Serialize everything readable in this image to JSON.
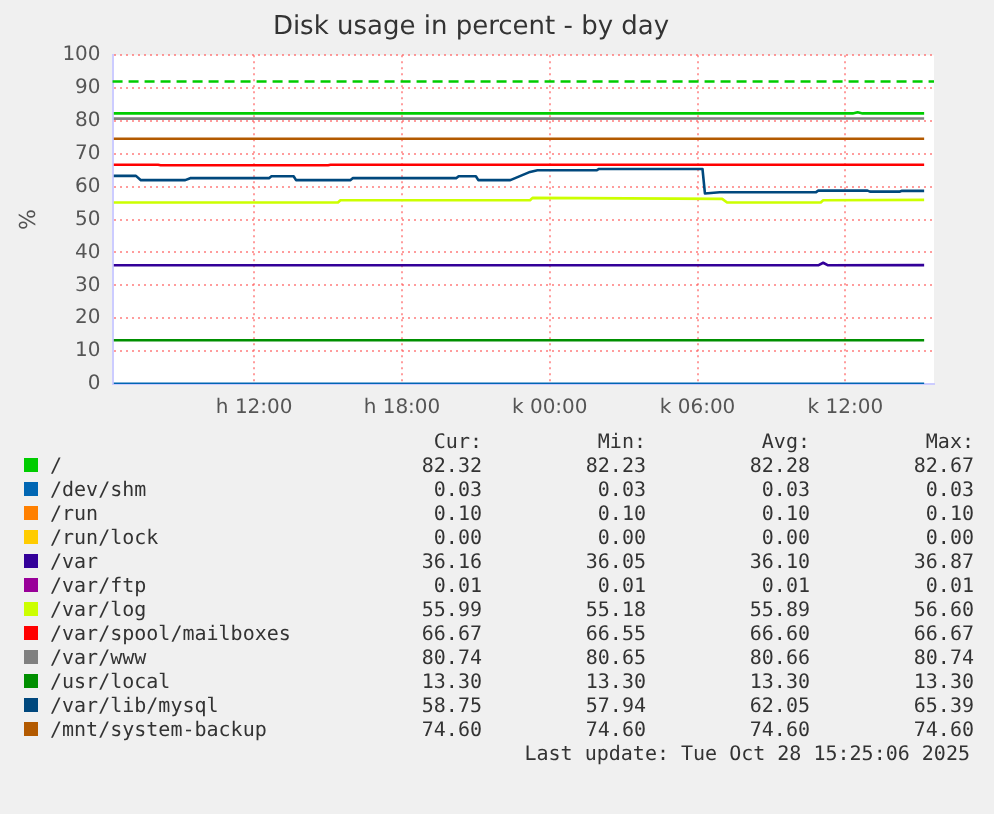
{
  "chart_data": {
    "type": "line",
    "title": "Disk usage in percent - by day",
    "ylabel": "%",
    "x": [
      "2025-10-27T06:18",
      "2025-10-28T15:12"
    ],
    "xlim": [
      "2025-10-27T06:15",
      "2025-10-28T15:36"
    ],
    "xticks": [
      {
        "value": "2025-10-27T12:00",
        "label": "h 12:00"
      },
      {
        "value": "2025-10-27T18:00",
        "label": "h 18:00"
      },
      {
        "value": "2025-10-28T00:00",
        "label": "k 00:00"
      },
      {
        "value": "2025-10-28T06:00",
        "label": "k 06:00"
      },
      {
        "value": "2025-10-28T12:00",
        "label": "k 12:00"
      }
    ],
    "ylim": [
      0,
      100
    ],
    "yticks": [
      0,
      10,
      20,
      30,
      40,
      50,
      60,
      70,
      80,
      90,
      100
    ],
    "grid": true,
    "legend": "bottom",
    "marker": "none",
    "line_style": "solid",
    "ref_lines": [
      {
        "axis": "y",
        "value": 92,
        "color": "#00cc00",
        "line_style": "dashed"
      }
    ],
    "series": [
      {
        "name": "/",
        "color": "#00cc00",
        "x": [
          "2025-10-27T06:18",
          "2025-10-28T12:18",
          "2025-10-28T12:30",
          "2025-10-28T12:42",
          "2025-10-28T15:12"
        ],
        "values": [
          82.3,
          82.3,
          82.67,
          82.3,
          82.32
        ]
      },
      {
        "name": "/dev/shm",
        "color": "#0066b3",
        "values": [
          0.03,
          0.03
        ]
      },
      {
        "name": "/run",
        "color": "#ff8000",
        "values": [
          null,
          null
        ]
      },
      {
        "name": "/run/lock",
        "color": "#ffcc00",
        "values": [
          null,
          null
        ]
      },
      {
        "name": "/var",
        "color": "#330099",
        "x": [
          "2025-10-27T06:18",
          "2025-10-28T10:54",
          "2025-10-28T11:06",
          "2025-10-28T11:18",
          "2025-10-28T15:12"
        ],
        "values": [
          36.1,
          36.1,
          36.87,
          36.1,
          36.16
        ]
      },
      {
        "name": "/var/ftp",
        "color": "#990099",
        "values": [
          null,
          null
        ]
      },
      {
        "name": "/var/log",
        "color": "#ccff00",
        "x": [
          "2025-10-27T06:18",
          "2025-10-27T15:24",
          "2025-10-27T15:30",
          "2025-10-27T23:12",
          "2025-10-27T23:18",
          "2025-10-28T07:00",
          "2025-10-28T07:12",
          "2025-10-28T11:00",
          "2025-10-28T11:06",
          "2025-10-28T15:12"
        ],
        "values": [
          55.2,
          55.2,
          55.9,
          55.9,
          56.6,
          56.3,
          55.2,
          55.2,
          55.9,
          55.99
        ]
      },
      {
        "name": "/var/spool/mailboxes",
        "color": "#ff0000",
        "x": [
          "2025-10-27T06:18",
          "2025-10-27T08:06",
          "2025-10-27T08:12",
          "2025-10-27T15:00",
          "2025-10-27T15:06",
          "2025-10-28T15:12"
        ],
        "values": [
          66.67,
          66.67,
          66.55,
          66.55,
          66.67,
          66.67
        ]
      },
      {
        "name": "/var/www",
        "color": "#808080",
        "values": [
          80.7,
          80.74
        ]
      },
      {
        "name": "/usr/local",
        "color": "#008f00",
        "values": [
          13.3,
          13.3
        ]
      },
      {
        "name": "/var/lib/mysql",
        "color": "#00487d",
        "x": [
          "2025-10-27T06:18",
          "2025-10-27T07:12",
          "2025-10-27T07:24",
          "2025-10-27T09:12",
          "2025-10-27T09:24",
          "2025-10-27T12:36",
          "2025-10-27T12:42",
          "2025-10-27T13:36",
          "2025-10-27T13:42",
          "2025-10-27T15:54",
          "2025-10-27T16:00",
          "2025-10-27T20:12",
          "2025-10-27T20:18",
          "2025-10-27T21:00",
          "2025-10-27T21:06",
          "2025-10-27T22:24",
          "2025-10-27T23:12",
          "2025-10-27T23:30",
          "2025-10-28T01:54",
          "2025-10-28T02:00",
          "2025-10-28T06:12",
          "2025-10-28T06:18",
          "2025-10-28T06:54",
          "2025-10-28T10:48",
          "2025-10-28T10:54",
          "2025-10-28T12:54",
          "2025-10-28T13:00",
          "2025-10-28T14:12",
          "2025-10-28T14:18",
          "2025-10-28T15:12"
        ],
        "values": [
          63.3,
          63.3,
          62.0,
          62.0,
          62.6,
          62.6,
          63.2,
          63.2,
          62.0,
          62.0,
          62.6,
          62.6,
          63.2,
          63.2,
          62.0,
          62.0,
          64.5,
          65.0,
          65.0,
          65.4,
          65.4,
          57.94,
          58.3,
          58.3,
          58.8,
          58.8,
          58.5,
          58.5,
          58.75,
          58.75
        ]
      },
      {
        "name": "/mnt/system-backup",
        "color": "#b35a00",
        "values": [
          74.6,
          74.6
        ]
      }
    ],
    "annotations": [
      "Cur:",
      "Min:",
      "Avg:",
      "Max:",
      "82.32",
      "82.23",
      "82.28",
      "82.67",
      "0.03",
      "0.03",
      "0.03",
      "0.03",
      "0.10",
      "0.10",
      "0.10",
      "0.10",
      "0.00",
      "0.00",
      "0.00",
      "0.00",
      "36.16",
      "36.05",
      "36.10",
      "36.87",
      "0.01",
      "0.01",
      "0.01",
      "0.01",
      "55.99",
      "55.18",
      "55.89",
      "56.60",
      "66.67",
      "66.55",
      "66.60",
      "66.67",
      "80.74",
      "80.65",
      "80.66",
      "80.74",
      "13.30",
      "13.30",
      "13.30",
      "13.30",
      "58.75",
      "57.94",
      "62.05",
      "65.39",
      "74.60",
      "74.60",
      "74.60",
      "74.60",
      "Last update: Tue Oct 28 15:25:06 2025"
    ]
  }
}
